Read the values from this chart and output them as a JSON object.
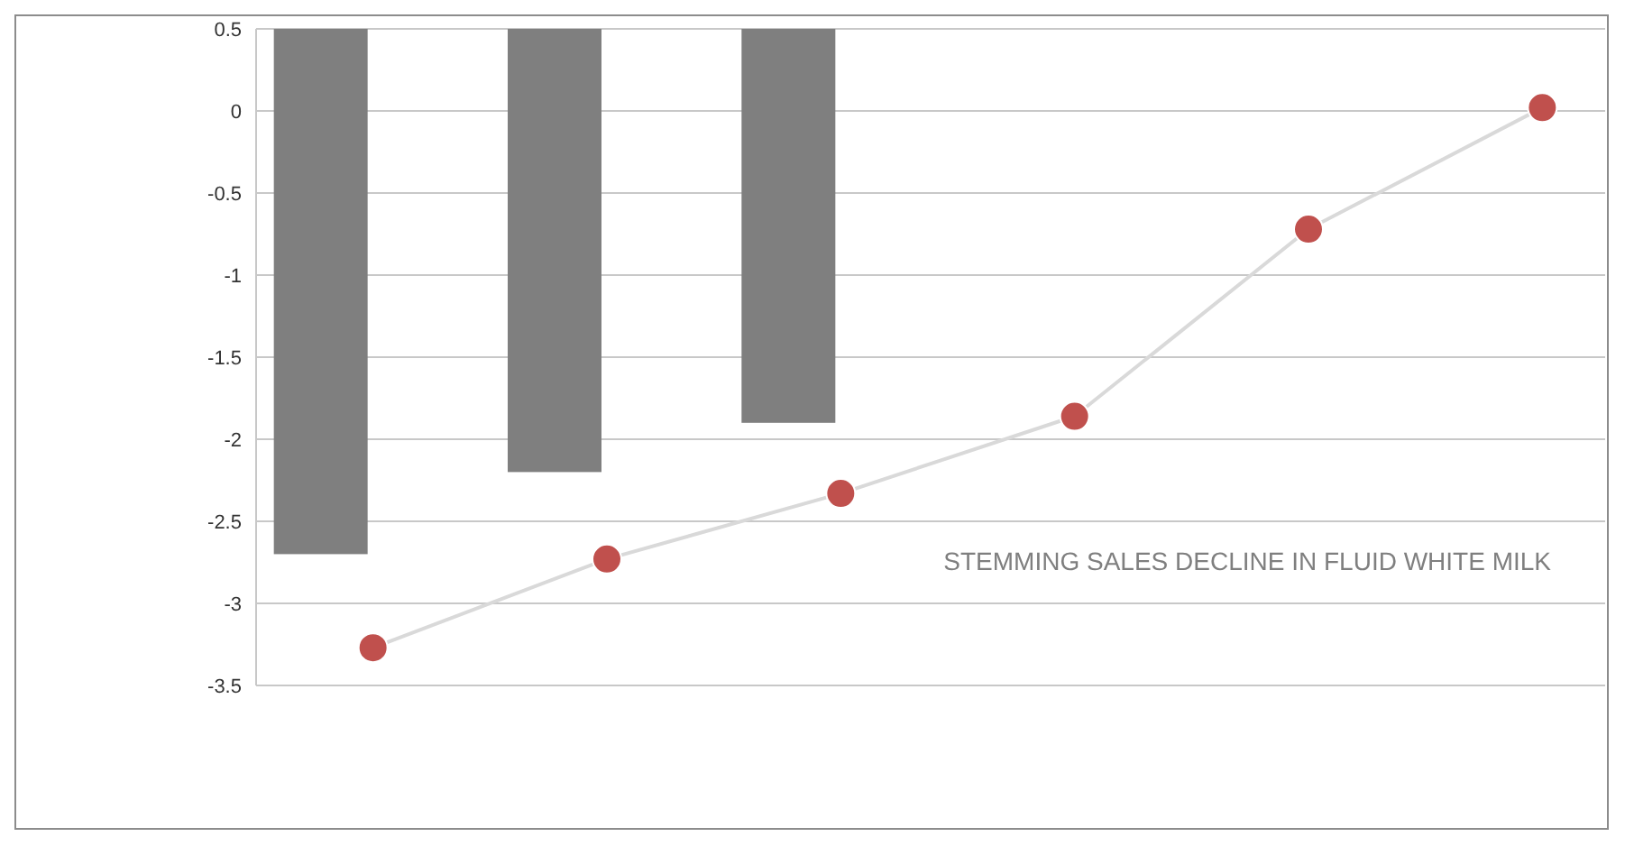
{
  "chart_data": {
    "type": "bar",
    "categories": [
      null,
      null,
      null,
      null,
      null,
      null
    ],
    "series": [
      {
        "color": "#7f7f7f",
        "values": [
          -3.2,
          -2.7,
          -2.4,
          null,
          null,
          null
        ],
        "base": [
          0.5,
          0.5,
          0.5,
          null,
          null,
          null
        ]
      },
      {
        "type": "line",
        "color": "#c0504d",
        "values": [
          -3.27,
          -2.73,
          -2.33,
          -1.86,
          -0.72,
          0.02
        ]
      }
    ],
    "ylim": [
      -3.5,
      0.5
    ],
    "yticks": [
      -3.5,
      -3,
      -2.5,
      -2,
      -1.5,
      -1,
      -0.5,
      0,
      0.5
    ],
    "grid": "y",
    "marker": "circle",
    "annotations": [
      {
        "text": "STEMMING SALES DECLINE IN FLUID WHITE MILK"
      }
    ]
  }
}
